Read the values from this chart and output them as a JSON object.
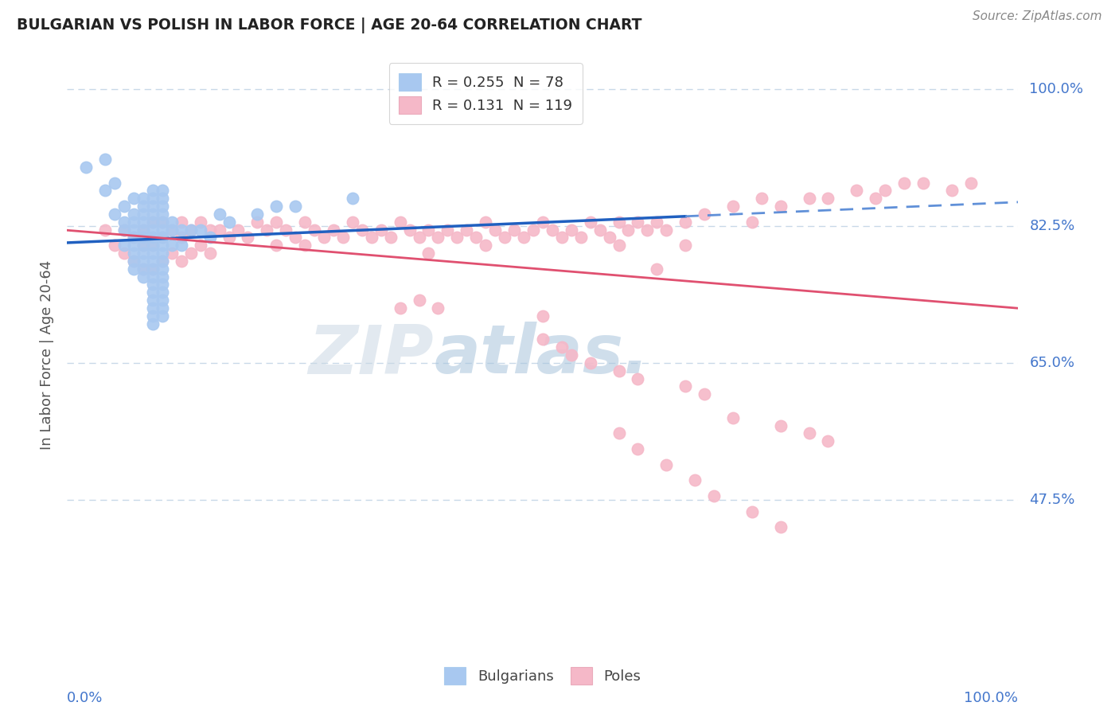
{
  "title": "BULGARIAN VS POLISH IN LABOR FORCE | AGE 20-64 CORRELATION CHART",
  "source": "Source: ZipAtlas.com",
  "ylabel": "In Labor Force | Age 20-64",
  "xlim": [
    0.0,
    1.0
  ],
  "ylim": [
    0.27,
    1.05
  ],
  "bulgarian_R": 0.255,
  "bulgarian_N": 78,
  "polish_R": 0.131,
  "polish_N": 119,
  "bulgarian_color": "#A8C8F0",
  "polish_color": "#F5B8C8",
  "trend_blue": "#2060C0",
  "trend_blue_dash": "#6090D8",
  "trend_pink": "#E05070",
  "watermark_zip": "ZIP",
  "watermark_atlas": "atlas.",
  "zip_color": "#C0CCD8",
  "atlas_color": "#B8CCE0",
  "bg_color": "#FFFFFF",
  "grid_color": "#C8D8E8",
  "right_label_color": "#4477CC",
  "source_color": "#888888",
  "title_color": "#222222",
  "ylabel_color": "#555555",
  "legend_text_color": "#333333",
  "legend_N_color": "#CC2244",
  "legend_R_color": "#4477CC",
  "ytick_vals": [
    0.475,
    0.65,
    0.825,
    1.0
  ],
  "ytick_labels": [
    "47.5%",
    "65.0%",
    "82.5%",
    "100.0%"
  ],
  "bulgarian_x": [
    0.02,
    0.04,
    0.04,
    0.05,
    0.05,
    0.06,
    0.06,
    0.06,
    0.06,
    0.07,
    0.07,
    0.07,
    0.07,
    0.07,
    0.07,
    0.07,
    0.07,
    0.07,
    0.08,
    0.08,
    0.08,
    0.08,
    0.08,
    0.08,
    0.08,
    0.08,
    0.08,
    0.08,
    0.08,
    0.09,
    0.09,
    0.09,
    0.09,
    0.09,
    0.09,
    0.09,
    0.09,
    0.09,
    0.09,
    0.09,
    0.09,
    0.09,
    0.09,
    0.09,
    0.09,
    0.09,
    0.09,
    0.1,
    0.1,
    0.1,
    0.1,
    0.1,
    0.1,
    0.1,
    0.1,
    0.1,
    0.1,
    0.1,
    0.1,
    0.1,
    0.1,
    0.1,
    0.1,
    0.1,
    0.11,
    0.11,
    0.11,
    0.12,
    0.12,
    0.13,
    0.14,
    0.15,
    0.16,
    0.17,
    0.2,
    0.22,
    0.24,
    0.3
  ],
  "bulgarian_y": [
    0.9,
    0.91,
    0.87,
    0.88,
    0.84,
    0.85,
    0.83,
    0.82,
    0.8,
    0.86,
    0.84,
    0.83,
    0.82,
    0.81,
    0.8,
    0.79,
    0.78,
    0.77,
    0.86,
    0.85,
    0.84,
    0.83,
    0.82,
    0.81,
    0.8,
    0.79,
    0.78,
    0.77,
    0.76,
    0.87,
    0.86,
    0.85,
    0.84,
    0.83,
    0.82,
    0.81,
    0.8,
    0.79,
    0.78,
    0.77,
    0.76,
    0.75,
    0.74,
    0.73,
    0.72,
    0.71,
    0.7,
    0.87,
    0.86,
    0.85,
    0.84,
    0.83,
    0.82,
    0.81,
    0.8,
    0.79,
    0.78,
    0.77,
    0.76,
    0.75,
    0.74,
    0.73,
    0.72,
    0.71,
    0.83,
    0.82,
    0.8,
    0.82,
    0.8,
    0.82,
    0.82,
    0.81,
    0.84,
    0.83,
    0.84,
    0.85,
    0.85,
    0.86
  ],
  "polish_x": [
    0.04,
    0.05,
    0.06,
    0.06,
    0.07,
    0.07,
    0.08,
    0.08,
    0.08,
    0.09,
    0.09,
    0.09,
    0.1,
    0.1,
    0.1,
    0.11,
    0.11,
    0.12,
    0.12,
    0.12,
    0.13,
    0.13,
    0.14,
    0.14,
    0.15,
    0.15,
    0.16,
    0.17,
    0.18,
    0.19,
    0.2,
    0.21,
    0.22,
    0.22,
    0.23,
    0.24,
    0.25,
    0.25,
    0.26,
    0.27,
    0.28,
    0.29,
    0.3,
    0.31,
    0.32,
    0.33,
    0.34,
    0.35,
    0.36,
    0.37,
    0.38,
    0.38,
    0.39,
    0.4,
    0.41,
    0.42,
    0.43,
    0.44,
    0.44,
    0.45,
    0.46,
    0.47,
    0.48,
    0.49,
    0.5,
    0.51,
    0.52,
    0.53,
    0.54,
    0.55,
    0.56,
    0.57,
    0.58,
    0.58,
    0.59,
    0.6,
    0.61,
    0.62,
    0.63,
    0.65,
    0.65,
    0.67,
    0.7,
    0.72,
    0.73,
    0.75,
    0.78,
    0.8,
    0.83,
    0.85,
    0.86,
    0.88,
    0.9,
    0.93,
    0.95,
    0.62,
    0.35,
    0.37,
    0.39,
    0.5,
    0.5,
    0.52,
    0.53,
    0.55,
    0.58,
    0.6,
    0.65,
    0.67,
    0.7,
    0.75,
    0.78,
    0.8,
    0.58,
    0.6,
    0.63,
    0.66,
    0.68,
    0.72,
    0.75
  ],
  "polish_y": [
    0.82,
    0.8,
    0.82,
    0.79,
    0.81,
    0.78,
    0.82,
    0.8,
    0.77,
    0.83,
    0.8,
    0.77,
    0.83,
    0.81,
    0.78,
    0.82,
    0.79,
    0.83,
    0.81,
    0.78,
    0.82,
    0.79,
    0.83,
    0.8,
    0.82,
    0.79,
    0.82,
    0.81,
    0.82,
    0.81,
    0.83,
    0.82,
    0.83,
    0.8,
    0.82,
    0.81,
    0.83,
    0.8,
    0.82,
    0.81,
    0.82,
    0.81,
    0.83,
    0.82,
    0.81,
    0.82,
    0.81,
    0.83,
    0.82,
    0.81,
    0.82,
    0.79,
    0.81,
    0.82,
    0.81,
    0.82,
    0.81,
    0.83,
    0.8,
    0.82,
    0.81,
    0.82,
    0.81,
    0.82,
    0.83,
    0.82,
    0.81,
    0.82,
    0.81,
    0.83,
    0.82,
    0.81,
    0.83,
    0.8,
    0.82,
    0.83,
    0.82,
    0.83,
    0.82,
    0.83,
    0.8,
    0.84,
    0.85,
    0.83,
    0.86,
    0.85,
    0.86,
    0.86,
    0.87,
    0.86,
    0.87,
    0.88,
    0.88,
    0.87,
    0.88,
    0.77,
    0.72,
    0.73,
    0.72,
    0.71,
    0.68,
    0.67,
    0.66,
    0.65,
    0.64,
    0.63,
    0.62,
    0.61,
    0.58,
    0.57,
    0.56,
    0.55,
    0.56,
    0.54,
    0.52,
    0.5,
    0.48,
    0.46,
    0.44
  ],
  "trend_bg_start_x": 0.0,
  "trend_bg_end_x": 0.65,
  "trend_bg_dash_start_x": 0.65,
  "trend_bg_dash_end_x": 1.0
}
